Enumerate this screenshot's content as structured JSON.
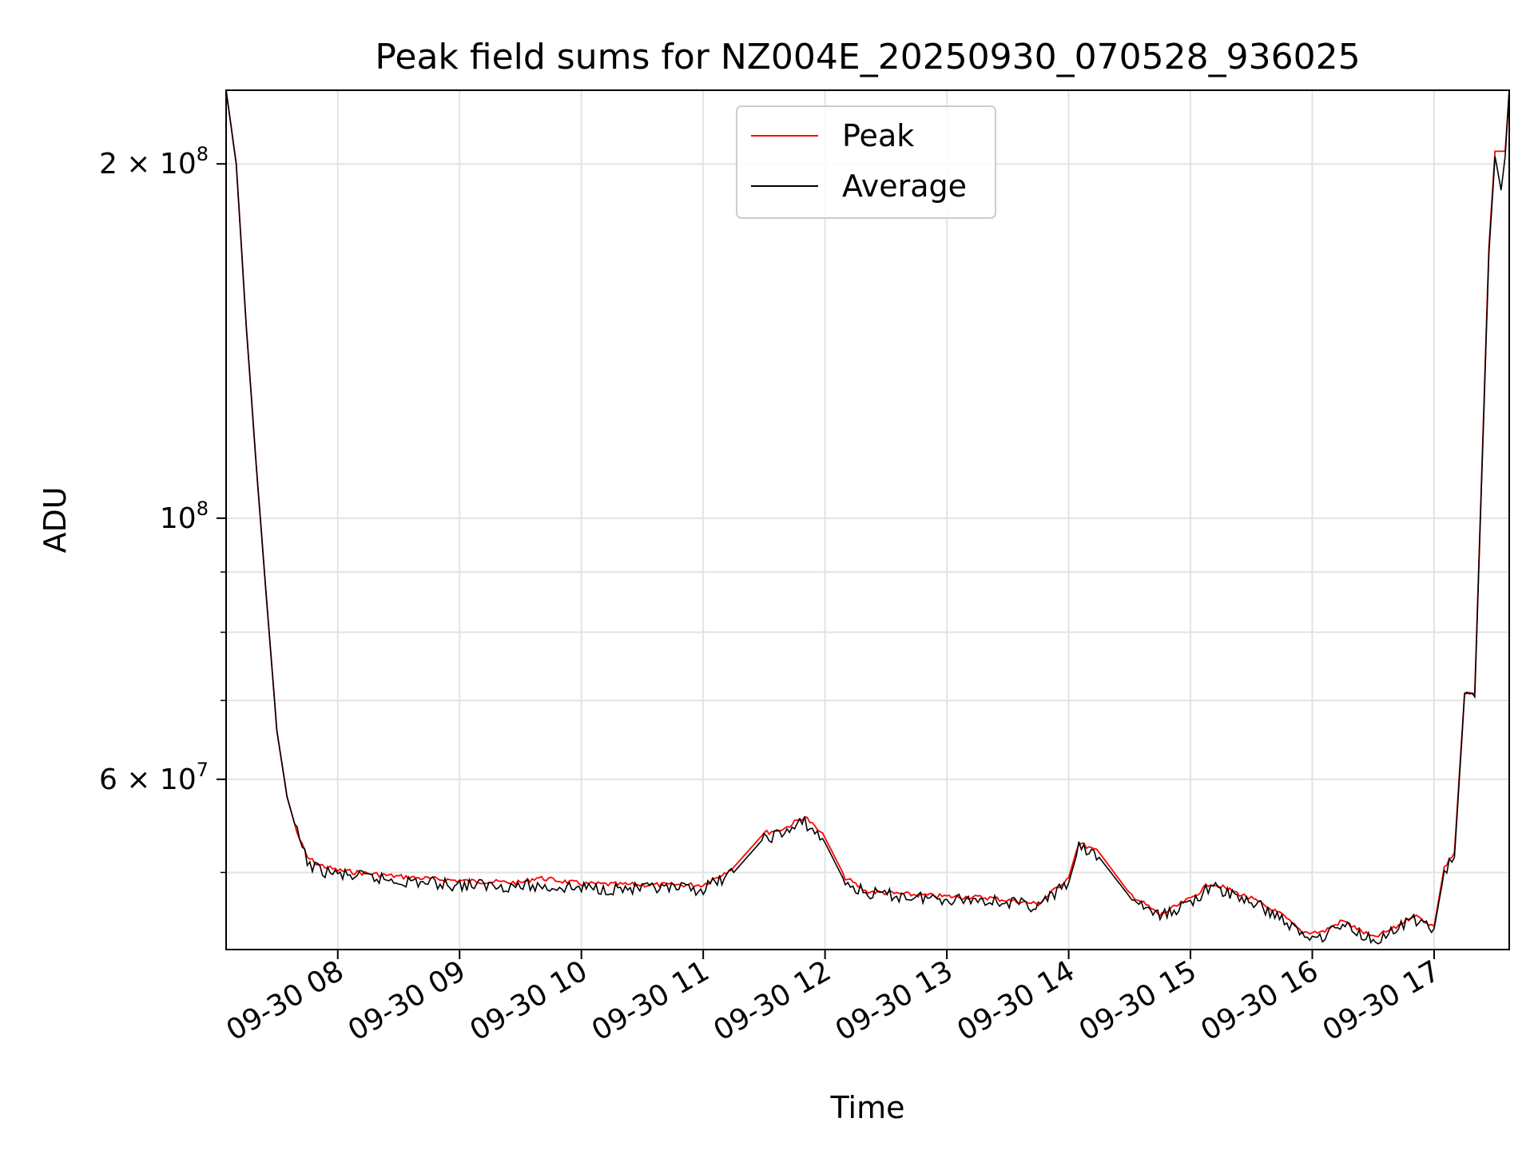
{
  "chart_data": {
    "type": "line",
    "title": "Peak field sums for NZ004E_20250930_070528_936025",
    "xlabel": "Time",
    "ylabel": "ADU",
    "y_scale": "log",
    "ylim": [
      43000000,
      231000000
    ],
    "xlim": [
      "2025-09-30 07:05",
      "2025-09-30 17:37"
    ],
    "grid": true,
    "legend_position": "top-center",
    "x_ticks": [
      {
        "value": "2025-09-30 08:00",
        "label": "09-30 08"
      },
      {
        "value": "2025-09-30 09:00",
        "label": "09-30 09"
      },
      {
        "value": "2025-09-30 10:00",
        "label": "09-30 10"
      },
      {
        "value": "2025-09-30 11:00",
        "label": "09-30 11"
      },
      {
        "value": "2025-09-30 12:00",
        "label": "09-30 12"
      },
      {
        "value": "2025-09-30 13:00",
        "label": "09-30 13"
      },
      {
        "value": "2025-09-30 14:00",
        "label": "09-30 14"
      },
      {
        "value": "2025-09-30 15:00",
        "label": "09-30 15"
      },
      {
        "value": "2025-09-30 16:00",
        "label": "09-30 16"
      },
      {
        "value": "2025-09-30 17:00",
        "label": "09-30 17"
      }
    ],
    "y_major_ticks": [
      {
        "value": 60000000,
        "mantissa": "6 × 10",
        "exp": "7"
      },
      {
        "value": 100000000,
        "mantissa": "10",
        "exp": "8"
      },
      {
        "value": 200000000,
        "mantissa": "2 × 10",
        "exp": "8"
      }
    ],
    "y_minor_ticks": [
      50000000,
      70000000,
      80000000,
      90000000,
      300000000
    ],
    "series": [
      {
        "name": "Peak",
        "color": "#ff0000",
        "x": [
          "2025-09-30 07:05",
          "2025-09-30 07:10",
          "2025-09-30 07:15",
          "2025-09-30 07:20",
          "2025-09-30 07:25",
          "2025-09-30 07:30",
          "2025-09-30 07:35",
          "2025-09-30 07:40",
          "2025-09-30 07:45",
          "2025-09-30 07:50",
          "2025-09-30 08:00",
          "2025-09-30 08:30",
          "2025-09-30 09:00",
          "2025-09-30 09:30",
          "2025-09-30 09:38",
          "2025-09-30 10:00",
          "2025-09-30 10:30",
          "2025-09-30 11:00",
          "2025-09-30 11:15",
          "2025-09-30 11:30",
          "2025-09-30 11:40",
          "2025-09-30 11:50",
          "2025-09-30 12:00",
          "2025-09-30 12:10",
          "2025-09-30 12:20",
          "2025-09-30 12:40",
          "2025-09-30 13:00",
          "2025-09-30 13:20",
          "2025-09-30 13:45",
          "2025-09-30 14:00",
          "2025-09-30 14:05",
          "2025-09-30 14:15",
          "2025-09-30 14:30",
          "2025-09-30 14:45",
          "2025-09-30 15:00",
          "2025-09-30 15:10",
          "2025-09-30 15:30",
          "2025-09-30 15:45",
          "2025-09-30 15:55",
          "2025-09-30 16:05",
          "2025-09-30 16:15",
          "2025-09-30 16:30",
          "2025-09-30 16:40",
          "2025-09-30 16:50",
          "2025-09-30 16:55",
          "2025-09-30 17:00",
          "2025-09-30 17:05",
          "2025-09-30 17:10",
          "2025-09-30 17:15",
          "2025-09-30 17:20",
          "2025-09-30 17:27",
          "2025-09-30 17:30",
          "2025-09-30 17:35",
          "2025-09-30 17:37"
        ],
        "y": [
          231000000,
          200000000,
          145000000,
          110000000,
          85000000,
          66000000,
          58000000,
          54000000,
          51500000,
          50800000,
          50200000,
          49600000,
          49200000,
          49000000,
          49500000,
          48900000,
          48800000,
          48800000,
          50500000,
          54000000,
          54500000,
          55800000,
          53500000,
          49500000,
          48200000,
          47900000,
          47700000,
          47600000,
          47000000,
          49500000,
          53000000,
          52000000,
          48000000,
          46000000,
          47500000,
          49000000,
          47500000,
          46000000,
          44500000,
          44500000,
          45500000,
          44000000,
          44800000,
          46000000,
          45500000,
          45000000,
          50500000,
          52000000,
          71000000,
          71000000,
          170000000,
          205000000,
          205000000,
          231000000
        ]
      },
      {
        "name": "Average",
        "color": "#000000",
        "x": [
          "2025-09-30 07:05",
          "2025-09-30 07:10",
          "2025-09-30 07:15",
          "2025-09-30 07:20",
          "2025-09-30 07:25",
          "2025-09-30 07:30",
          "2025-09-30 07:35",
          "2025-09-30 07:40",
          "2025-09-30 07:45",
          "2025-09-30 07:50",
          "2025-09-30 08:00",
          "2025-09-30 08:30",
          "2025-09-30 09:00",
          "2025-09-30 09:30",
          "2025-09-30 10:00",
          "2025-09-30 10:30",
          "2025-09-30 11:00",
          "2025-09-30 11:15",
          "2025-09-30 11:30",
          "2025-09-30 11:40",
          "2025-09-30 11:50",
          "2025-09-30 12:00",
          "2025-09-30 12:10",
          "2025-09-30 12:20",
          "2025-09-30 12:40",
          "2025-09-30 13:00",
          "2025-09-30 13:20",
          "2025-09-30 13:45",
          "2025-09-30 14:00",
          "2025-09-30 14:05",
          "2025-09-30 14:15",
          "2025-09-30 14:30",
          "2025-09-30 14:45",
          "2025-09-30 15:00",
          "2025-09-30 15:10",
          "2025-09-30 15:30",
          "2025-09-30 15:45",
          "2025-09-30 15:55",
          "2025-09-30 16:05",
          "2025-09-30 16:15",
          "2025-09-30 16:30",
          "2025-09-30 16:40",
          "2025-09-30 16:50",
          "2025-09-30 16:55",
          "2025-09-30 17:00",
          "2025-09-30 17:05",
          "2025-09-30 17:10",
          "2025-09-30 17:15",
          "2025-09-30 17:20",
          "2025-09-30 17:27",
          "2025-09-30 17:30",
          "2025-09-30 17:33",
          "2025-09-30 17:35",
          "2025-09-30 17:37"
        ],
        "y": [
          231000000,
          200000000,
          145000000,
          110000000,
          85000000,
          66000000,
          58000000,
          54000000,
          51000000,
          50300000,
          49800000,
          49200000,
          48800000,
          48700000,
          48500000,
          48400000,
          48400000,
          50000000,
          53500000,
          54000000,
          55200000,
          53000000,
          49000000,
          48000000,
          47700000,
          47500000,
          47400000,
          46800000,
          49000000,
          52500000,
          51500000,
          47700000,
          45800000,
          47200000,
          48600000,
          47200000,
          45700000,
          44200000,
          44200000,
          45200000,
          43800000,
          44500000,
          45700000,
          45200000,
          44800000,
          50000000,
          51500000,
          70500000,
          70500000,
          168000000,
          203000000,
          190000000,
          203000000,
          231000000
        ]
      }
    ]
  }
}
